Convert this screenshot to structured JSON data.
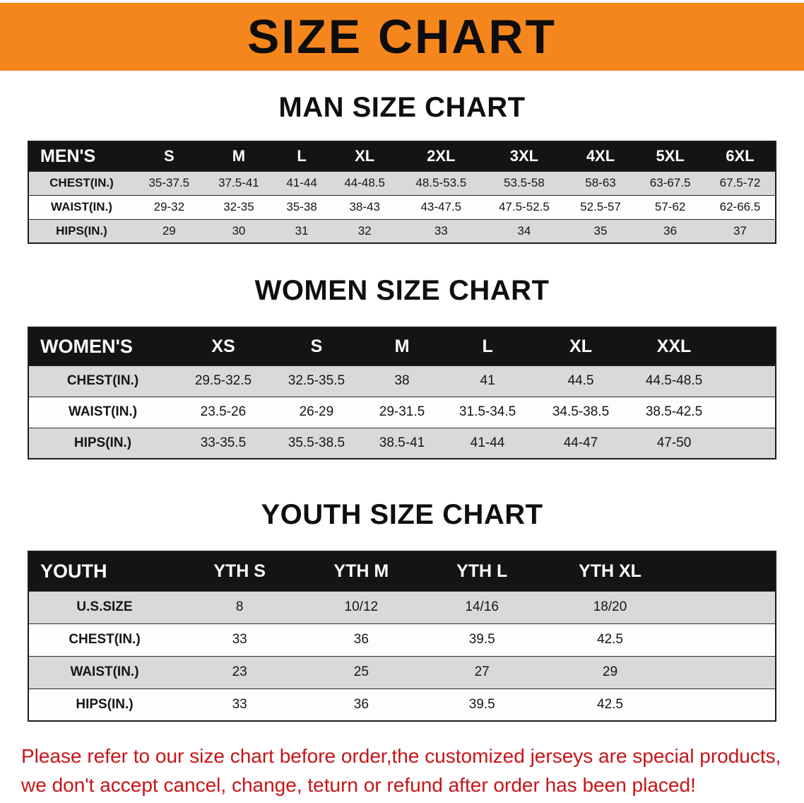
{
  "banner": {
    "title": "SIZE CHART"
  },
  "sections": [
    {
      "heading": "MAN SIZE CHART",
      "table": {
        "header": [
          "MEN'S",
          "S",
          "M",
          "L",
          "XL",
          "2XL",
          "3XL",
          "4XL",
          "5XL",
          "6XL"
        ],
        "rows": [
          {
            "label": "CHEST(IN.)",
            "values": [
              "35-37.5",
              "37.5-41",
              "41-44",
              "44-48.5",
              "48.5-53.5",
              "53.5-58",
              "58-63",
              "63-67.5",
              "67.5-72"
            ]
          },
          {
            "label": "WAIST(IN.)",
            "values": [
              "29-32",
              "32-35",
              "35-38",
              "38-43",
              "43-47.5",
              "47.5-52.5",
              "52.5-57",
              "57-62",
              "62-66.5"
            ]
          },
          {
            "label": "HIPS(IN.)",
            "values": [
              "29",
              "30",
              "31",
              "32",
              "33",
              "34",
              "35",
              "36",
              "37"
            ]
          }
        ]
      }
    },
    {
      "heading": "WOMEN SIZE CHART",
      "table": {
        "header": [
          "WOMEN'S",
          "XS",
          "S",
          "M",
          "L",
          "XL",
          "XXL"
        ],
        "rows": [
          {
            "label": "CHEST(IN.)",
            "values": [
              "29.5-32.5",
              "32.5-35.5",
              "38",
              "41",
              "44.5",
              "44.5-48.5"
            ]
          },
          {
            "label": "WAIST(IN.)",
            "values": [
              "23.5-26",
              "26-29",
              "29-31.5",
              "31.5-34.5",
              "34.5-38.5",
              "38.5-42.5"
            ]
          },
          {
            "label": "HIPS(IN.)",
            "values": [
              "33-35.5",
              "35.5-38.5",
              "38.5-41",
              "41-44",
              "44-47",
              "47-50"
            ]
          }
        ]
      }
    },
    {
      "heading": "YOUTH SIZE CHART",
      "table": {
        "header": [
          "YOUTH",
          "YTH S",
          "YTH M",
          "YTH L",
          "YTH XL"
        ],
        "rows": [
          {
            "label": "U.S.SIZE",
            "values": [
              "8",
              "10/12",
              "14/16",
              "18/20"
            ]
          },
          {
            "label": "CHEST(IN.)",
            "values": [
              "33",
              "36",
              "39.5",
              "42.5"
            ]
          },
          {
            "label": "WAIST(IN.)",
            "values": [
              "23",
              "25",
              "27",
              "29"
            ]
          },
          {
            "label": "HIPS(IN.)",
            "values": [
              "33",
              "36",
              "39.5",
              "42.5"
            ]
          }
        ]
      }
    }
  ],
  "footer": {
    "line1": "Please refer to our size chart before order,the customized jerseys are special products,",
    "line2": "we don't accept cancel, change, teturn or refund after order has been placed!"
  },
  "colors": {
    "banner_bg": "#f5861c",
    "table_header_bg": "#141414",
    "table_header_text": "#ffffff",
    "row_stripe": "#d9d9d9",
    "row_white": "#fdfdfd",
    "heading_text": "#0f0f0f",
    "footer_text": "#c81418",
    "border": "#1c1c1c"
  }
}
